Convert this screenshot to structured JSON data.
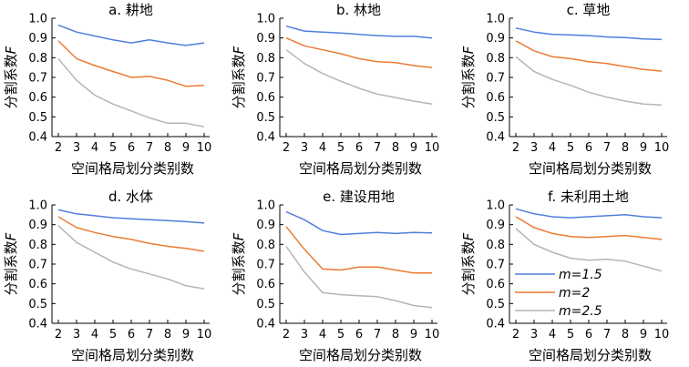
{
  "chart_data": [
    {
      "type": "line",
      "title": "a. 耕地",
      "xlabel": "空间格局划分类别数",
      "ylabel": "分割系数F",
      "x": [
        2,
        3,
        4,
        5,
        6,
        7,
        8,
        9,
        10
      ],
      "xlim": [
        2,
        10
      ],
      "ylim": [
        0.4,
        1.0
      ],
      "yticks": [
        "0.4",
        "0.5",
        "0.6",
        "0.7",
        "0.8",
        "0.9",
        "1.0"
      ],
      "grid": false,
      "series": [
        {
          "name": "m=1.5",
          "color": "#4f7fdc",
          "values": [
            0.965,
            0.93,
            0.91,
            0.89,
            0.875,
            0.89,
            0.875,
            0.862,
            0.875
          ]
        },
        {
          "name": "m=2",
          "color": "#ec7a34",
          "values": [
            0.885,
            0.795,
            0.76,
            0.73,
            0.7,
            0.705,
            0.685,
            0.655,
            0.66
          ]
        },
        {
          "name": "m=2.5",
          "color": "#b5b5b5",
          "values": [
            0.795,
            0.685,
            0.61,
            0.565,
            0.53,
            0.495,
            0.468,
            0.468,
            0.45
          ]
        }
      ]
    },
    {
      "type": "line",
      "title": "b. 林地",
      "xlabel": "空间格局划分类别数",
      "ylabel": "分割系数F",
      "x": [
        2,
        3,
        4,
        5,
        6,
        7,
        8,
        9,
        10
      ],
      "xlim": [
        2,
        10
      ],
      "ylim": [
        0.4,
        1.0
      ],
      "yticks": [
        "0.4",
        "0.5",
        "0.6",
        "0.7",
        "0.8",
        "0.9",
        "1.0"
      ],
      "grid": false,
      "series": [
        {
          "name": "m=1.5",
          "color": "#4f7fdc",
          "values": [
            0.96,
            0.935,
            0.93,
            0.925,
            0.918,
            0.912,
            0.908,
            0.908,
            0.9
          ]
        },
        {
          "name": "m=2",
          "color": "#ec7a34",
          "values": [
            0.9,
            0.86,
            0.84,
            0.82,
            0.795,
            0.78,
            0.775,
            0.76,
            0.75
          ]
        },
        {
          "name": "m=2.5",
          "color": "#b5b5b5",
          "values": [
            0.84,
            0.77,
            0.72,
            0.68,
            0.645,
            0.615,
            0.598,
            0.58,
            0.565
          ]
        }
      ]
    },
    {
      "type": "line",
      "title": "c. 草地",
      "xlabel": "空间格局划分类别数",
      "ylabel": "分割系数F",
      "x": [
        2,
        3,
        4,
        5,
        6,
        7,
        8,
        9,
        10
      ],
      "xlim": [
        2,
        10
      ],
      "ylim": [
        0.4,
        1.0
      ],
      "yticks": [
        "0.4",
        "0.5",
        "0.6",
        "0.7",
        "0.8",
        "0.9",
        "1.0"
      ],
      "grid": false,
      "series": [
        {
          "name": "m=1.5",
          "color": "#4f7fdc",
          "values": [
            0.95,
            0.93,
            0.918,
            0.915,
            0.912,
            0.905,
            0.902,
            0.895,
            0.892
          ]
        },
        {
          "name": "m=2",
          "color": "#ec7a34",
          "values": [
            0.885,
            0.835,
            0.805,
            0.795,
            0.78,
            0.77,
            0.755,
            0.74,
            0.732
          ]
        },
        {
          "name": "m=2.5",
          "color": "#b5b5b5",
          "values": [
            0.805,
            0.73,
            0.69,
            0.66,
            0.625,
            0.6,
            0.58,
            0.565,
            0.56
          ]
        }
      ]
    },
    {
      "type": "line",
      "title": "d. 水体",
      "xlabel": "空间格局划分类别数",
      "ylabel": "分割系数F",
      "x": [
        2,
        3,
        4,
        5,
        6,
        7,
        8,
        9,
        10
      ],
      "xlim": [
        2,
        10
      ],
      "ylim": [
        0.4,
        1.0
      ],
      "yticks": [
        "0.4",
        "0.5",
        "0.6",
        "0.7",
        "0.8",
        "0.9",
        "1.0"
      ],
      "grid": false,
      "series": [
        {
          "name": "m=1.5",
          "color": "#4f7fdc",
          "values": [
            0.975,
            0.955,
            0.945,
            0.935,
            0.93,
            0.925,
            0.92,
            0.915,
            0.908
          ]
        },
        {
          "name": "m=2",
          "color": "#ec7a34",
          "values": [
            0.94,
            0.885,
            0.86,
            0.84,
            0.825,
            0.805,
            0.79,
            0.78,
            0.765
          ]
        },
        {
          "name": "m=2.5",
          "color": "#b5b5b5",
          "values": [
            0.895,
            0.81,
            0.76,
            0.71,
            0.675,
            0.65,
            0.625,
            0.59,
            0.575
          ]
        }
      ]
    },
    {
      "type": "line",
      "title": "e. 建设用地",
      "xlabel": "空间格局划分类别数",
      "ylabel": "分割系数F",
      "x": [
        2,
        3,
        4,
        5,
        6,
        7,
        8,
        9,
        10
      ],
      "xlim": [
        2,
        10
      ],
      "ylim": [
        0.4,
        1.0
      ],
      "yticks": [
        "0.4",
        "0.5",
        "0.6",
        "0.7",
        "0.8",
        "0.9",
        "1.0"
      ],
      "grid": false,
      "series": [
        {
          "name": "m=1.5",
          "color": "#4f7fdc",
          "values": [
            0.965,
            0.925,
            0.87,
            0.85,
            0.855,
            0.86,
            0.855,
            0.86,
            0.858
          ]
        },
        {
          "name": "m=2",
          "color": "#ec7a34",
          "values": [
            0.89,
            0.775,
            0.675,
            0.67,
            0.685,
            0.685,
            0.67,
            0.655,
            0.655
          ]
        },
        {
          "name": "m=2.5",
          "color": "#b5b5b5",
          "values": [
            0.79,
            0.66,
            0.555,
            0.545,
            0.54,
            0.535,
            0.515,
            0.49,
            0.48
          ]
        }
      ]
    },
    {
      "type": "line",
      "title": "f. 未利用土地",
      "xlabel": "空间格局划分类别数",
      "ylabel": "分割系数F",
      "x": [
        2,
        3,
        4,
        5,
        6,
        7,
        8,
        9,
        10
      ],
      "xlim": [
        2,
        10
      ],
      "ylim": [
        0.4,
        1.0
      ],
      "yticks": [
        "0.4",
        "0.5",
        "0.6",
        "0.7",
        "0.8",
        "0.9",
        "1.0"
      ],
      "grid": false,
      "legend": "middle-right",
      "series": [
        {
          "name": "m=1.5",
          "color": "#4f7fdc",
          "values": [
            0.98,
            0.955,
            0.94,
            0.935,
            0.94,
            0.945,
            0.95,
            0.94,
            0.935
          ]
        },
        {
          "name": "m=2",
          "color": "#ec7a34",
          "values": [
            0.94,
            0.885,
            0.855,
            0.84,
            0.835,
            0.84,
            0.845,
            0.835,
            0.825
          ]
        },
        {
          "name": "m=2.5",
          "color": "#b5b5b5",
          "values": [
            0.88,
            0.8,
            0.76,
            0.73,
            0.72,
            0.725,
            0.715,
            0.69,
            0.665
          ]
        }
      ]
    }
  ]
}
